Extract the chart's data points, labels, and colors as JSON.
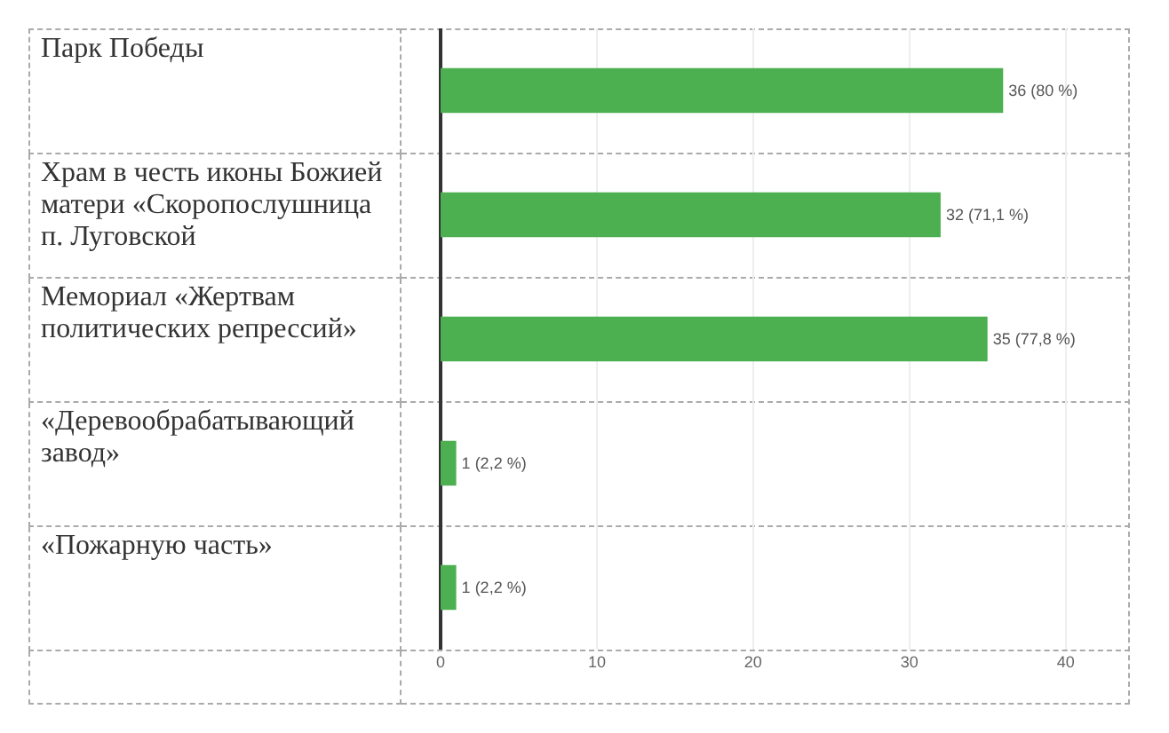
{
  "chart_data": {
    "type": "bar",
    "orientation": "horizontal",
    "categories": [
      "Парк Победы",
      "Храм в честь иконы Божией матери «Скоропослушница п. Луговской",
      "Мемориал «Жертвам политических репрессий»",
      "«Деревообрабатывающий завод»",
      "«Пожарную часть»"
    ],
    "values": [
      36,
      32,
      35,
      1,
      1
    ],
    "value_labels": [
      "36 (80 %)",
      "32 (71,1 %)",
      "35 (77,8 %)",
      "1 (2,2 %)",
      "1 (2,2 %)"
    ],
    "color": "#4caf50",
    "xlim": [
      0,
      44
    ],
    "xticks": [
      0,
      10,
      20,
      30,
      40
    ],
    "grid": "x"
  }
}
